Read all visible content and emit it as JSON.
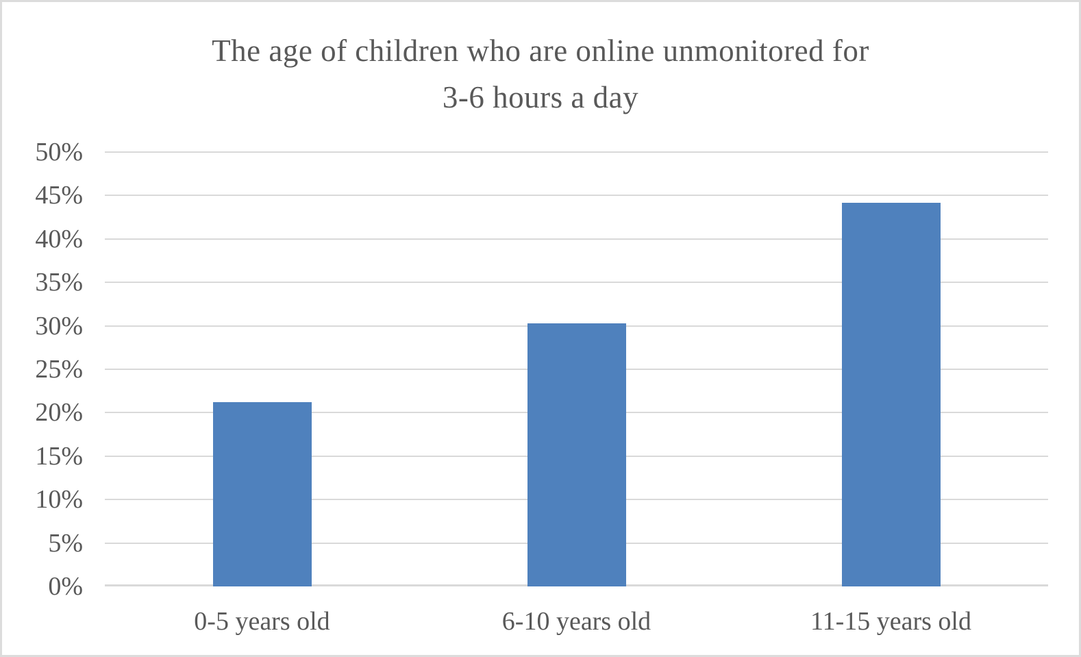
{
  "window": {
    "background_color": "#ffffff",
    "border_color": "#dcdcdc"
  },
  "chart_data": {
    "type": "bar",
    "title": "The age of children who are online unmonitored for 3-6 hours a day",
    "title_lines": [
      "The age of children who are online unmonitored for",
      "3-6 hours a day"
    ],
    "categories": [
      "0-5 years old",
      "6-10 years old",
      "11-15 years old"
    ],
    "values": [
      21.2,
      30.3,
      44.2
    ],
    "xlabel": "",
    "ylabel": "",
    "ylim": [
      0,
      50
    ],
    "yticks": [
      0,
      5,
      10,
      15,
      20,
      25,
      30,
      35,
      40,
      45,
      50
    ],
    "ytick_labels": [
      "0%",
      "5%",
      "10%",
      "15%",
      "20%",
      "25%",
      "30%",
      "35%",
      "40%",
      "45%",
      "50%"
    ],
    "grid": true,
    "legend": "none",
    "bar_color": "#4f81bd",
    "gridline_color": "#d9d9d9",
    "text_color": "#595959"
  }
}
